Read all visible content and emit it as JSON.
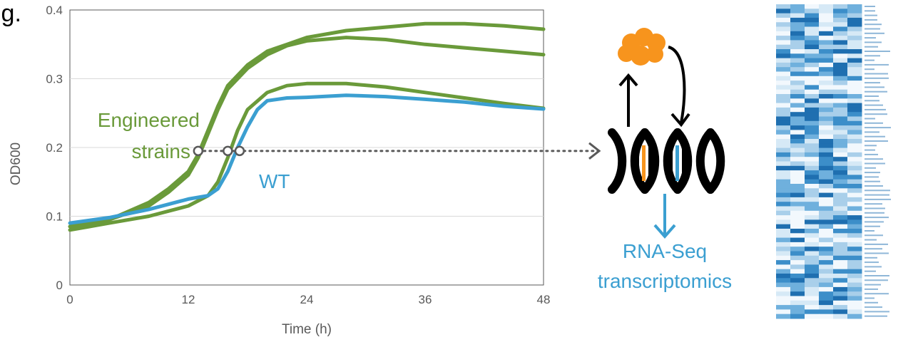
{
  "chart_data": {
    "type": "line",
    "title": "",
    "header_fragment": "ig.",
    "xlabel": "Time (h)",
    "ylabel": "OD600",
    "xlim": [
      0,
      48
    ],
    "ylim": [
      0,
      0.4
    ],
    "x_ticks": [
      "0",
      "12",
      "24",
      "36",
      "48"
    ],
    "y_ticks": [
      "0",
      "0.1",
      "0.2",
      "0.3",
      "0.4"
    ],
    "grid": true,
    "series": [
      {
        "group": "engineered",
        "color": "#6a9a3a",
        "x": [
          0,
          4,
          8,
          10,
          12,
          13,
          14,
          15,
          16,
          18,
          20,
          22,
          24,
          28,
          32,
          36,
          40,
          44,
          48
        ],
        "y": [
          0.085,
          0.095,
          0.12,
          0.14,
          0.165,
          0.19,
          0.225,
          0.26,
          0.29,
          0.32,
          0.34,
          0.35,
          0.36,
          0.37,
          0.375,
          0.38,
          0.38,
          0.377,
          0.372
        ]
      },
      {
        "group": "engineered",
        "color": "#6a9a3a",
        "x": [
          0,
          4,
          8,
          10,
          12,
          13,
          14,
          15,
          16,
          18,
          20,
          22,
          24,
          28,
          32,
          36,
          40,
          44,
          48
        ],
        "y": [
          0.085,
          0.095,
          0.115,
          0.135,
          0.16,
          0.185,
          0.22,
          0.255,
          0.285,
          0.315,
          0.335,
          0.348,
          0.355,
          0.36,
          0.357,
          0.35,
          0.345,
          0.34,
          0.335
        ]
      },
      {
        "group": "engineered",
        "color": "#6a9a3a",
        "x": [
          0,
          4,
          8,
          12,
          14,
          15,
          16,
          17,
          18,
          20,
          22,
          24,
          28,
          32,
          36,
          40,
          44,
          48
        ],
        "y": [
          0.08,
          0.09,
          0.1,
          0.115,
          0.13,
          0.15,
          0.185,
          0.225,
          0.255,
          0.28,
          0.29,
          0.293,
          0.293,
          0.288,
          0.28,
          0.272,
          0.264,
          0.257
        ]
      },
      {
        "group": "wt",
        "color": "#3b9fd1",
        "x": [
          0,
          4,
          8,
          12,
          14,
          15,
          16,
          17,
          18,
          19,
          20,
          22,
          24,
          28,
          32,
          36,
          40,
          44,
          48
        ],
        "y": [
          0.09,
          0.098,
          0.11,
          0.125,
          0.13,
          0.14,
          0.165,
          0.2,
          0.23,
          0.255,
          0.268,
          0.272,
          0.273,
          0.276,
          0.274,
          0.27,
          0.266,
          0.26,
          0.256
        ]
      }
    ],
    "markers": [
      {
        "x": 13,
        "y": 0.195
      },
      {
        "x": 16,
        "y": 0.195
      },
      {
        "x": 17.2,
        "y": 0.195
      }
    ],
    "threshold_y": 0.195,
    "annotations": {
      "engineered_line1": "Engineered",
      "engineered_line2": "strains",
      "wt": "WT"
    }
  },
  "schematic": {
    "rna_line1": "RNA-Seq",
    "rna_line2": "transcriptomics"
  },
  "colors": {
    "green": "#6a9a3a",
    "blue": "#3b9fd1",
    "orange": "#f7941d",
    "grid": "#d9d9d9",
    "axis": "#595959"
  }
}
